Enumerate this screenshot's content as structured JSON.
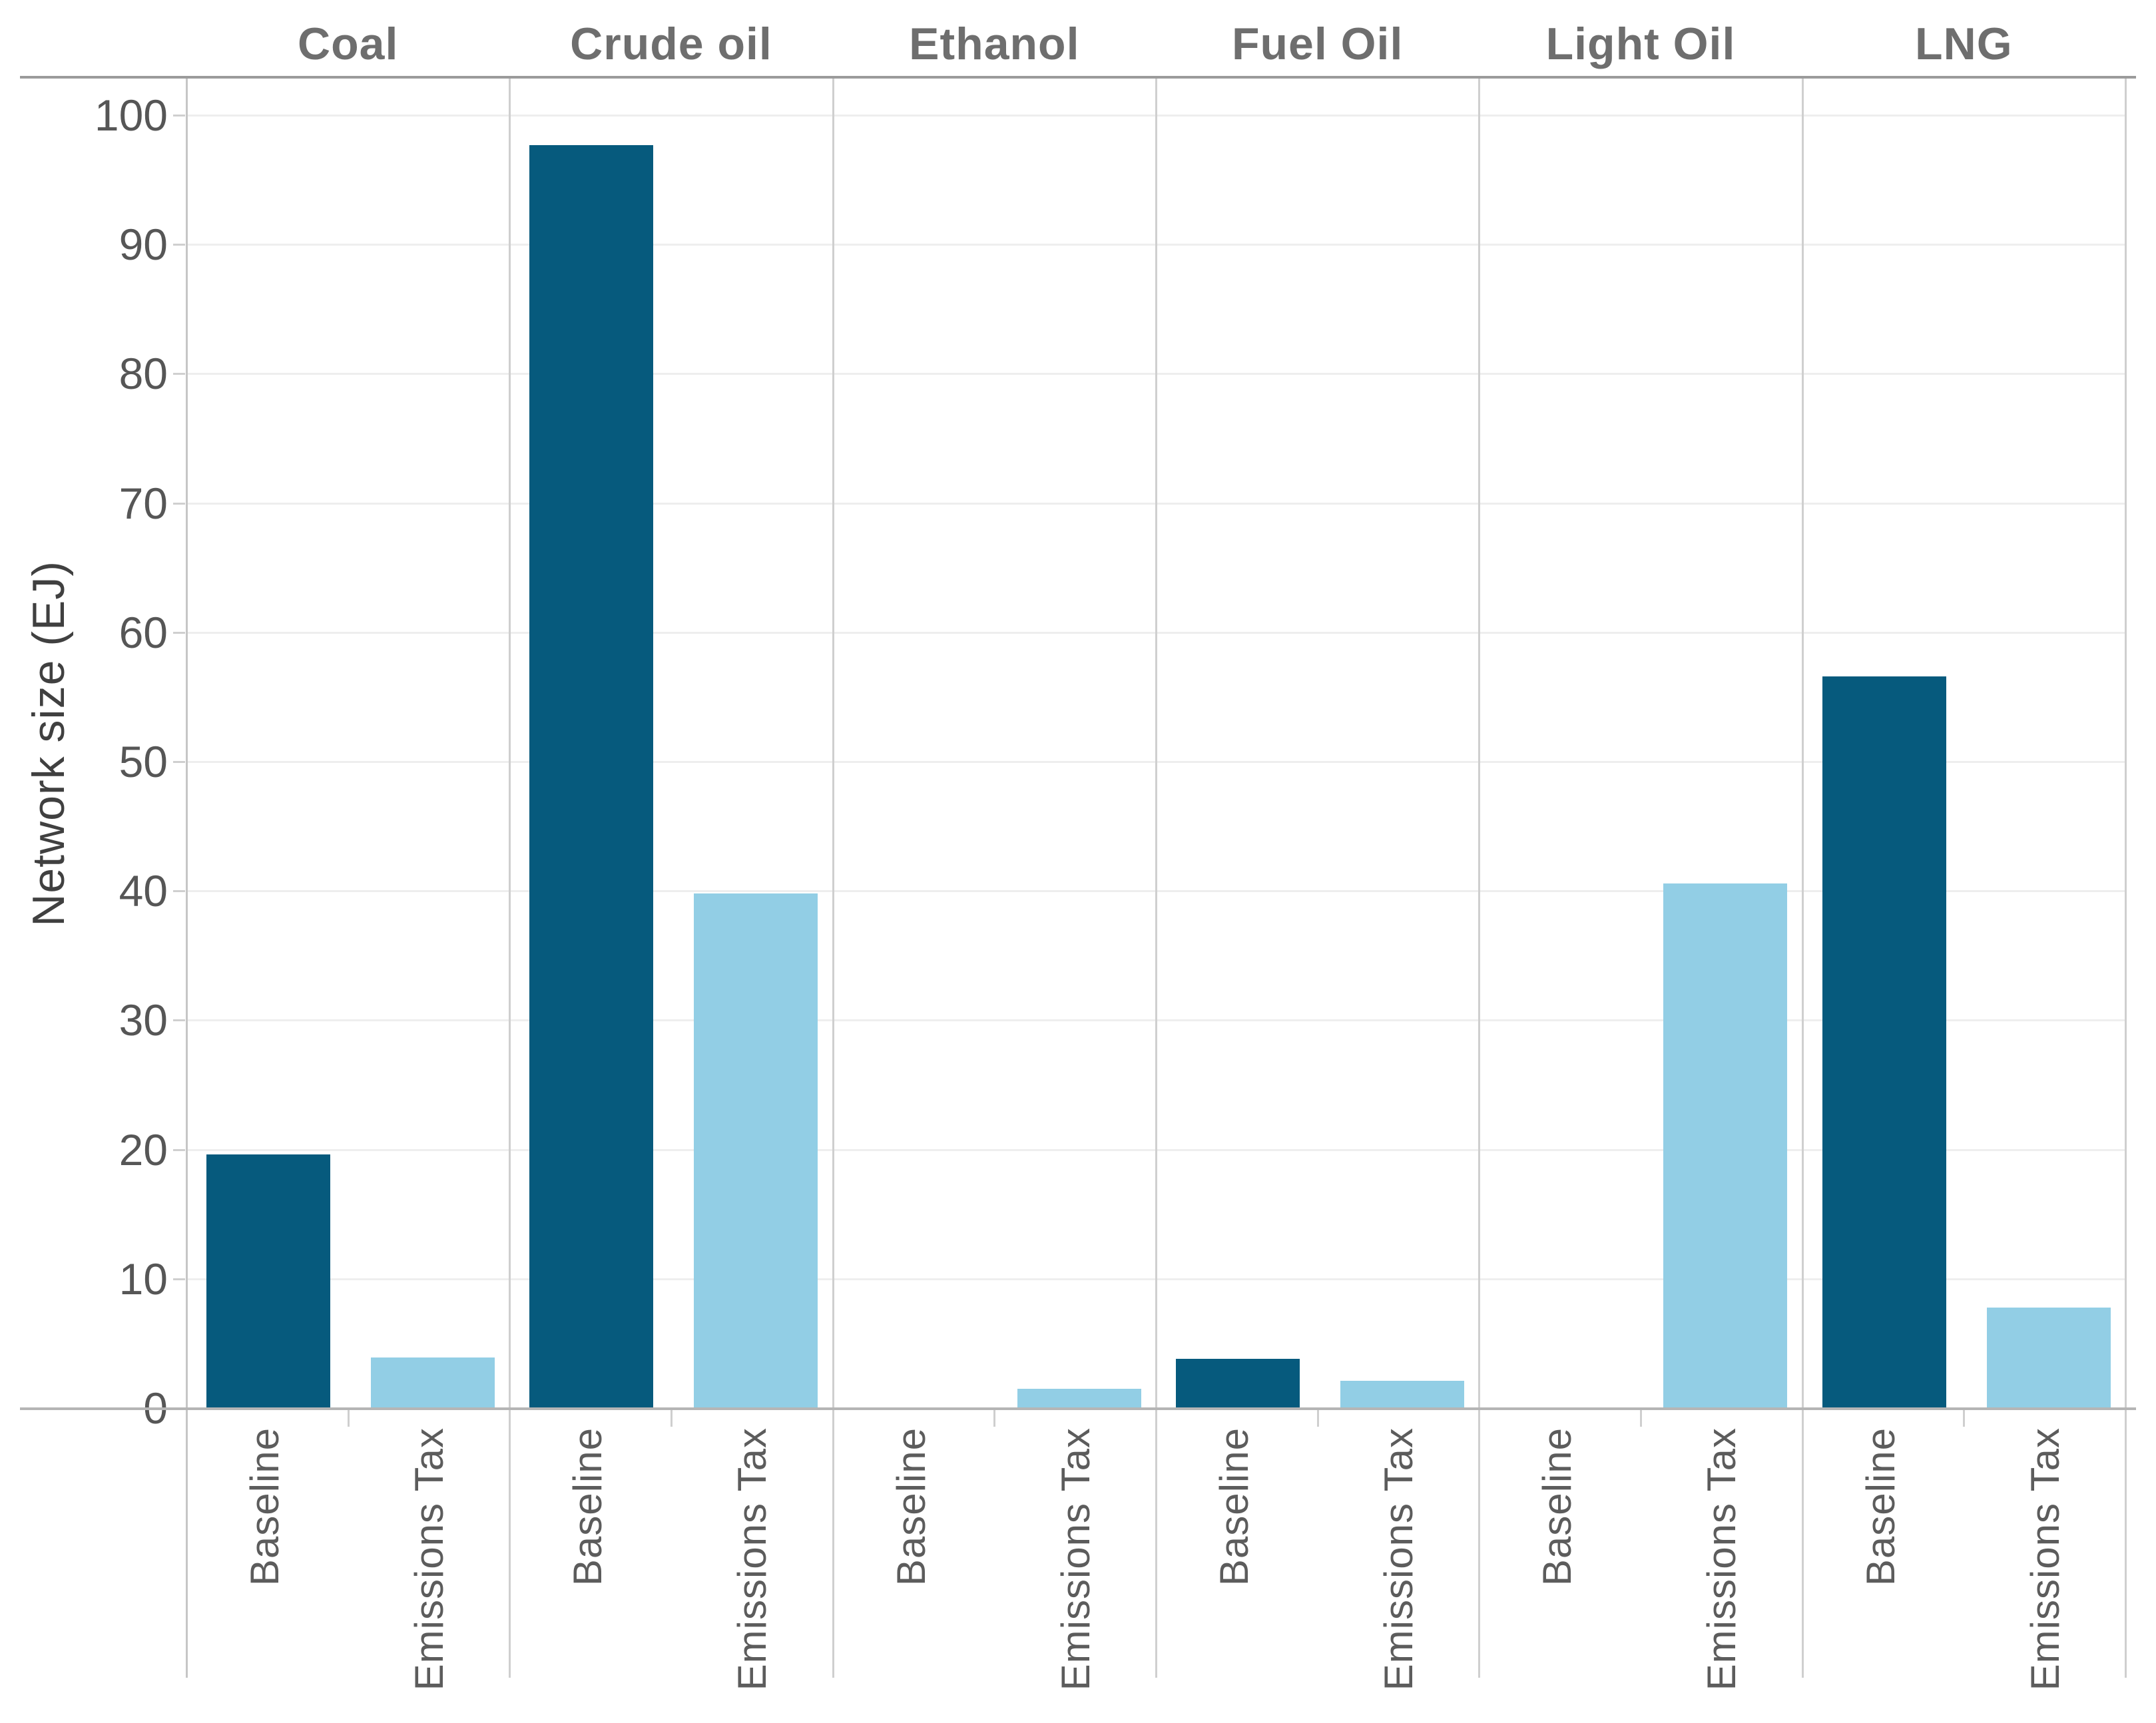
{
  "chart_data": {
    "type": "bar",
    "title": "",
    "ylabel": "Network size (EJ)",
    "xlabel": "",
    "ylim": [
      0,
      100
    ],
    "ytick_step": 10,
    "ytick_labels": [
      "0",
      "10",
      "20",
      "30",
      "40",
      "50",
      "60",
      "70",
      "80",
      "90",
      "100"
    ],
    "grid": true,
    "legend_position": "none",
    "facets": [
      "Coal",
      "Crude oil",
      "Ethanol",
      "Fuel Oil",
      "Light Oil",
      "LNG"
    ],
    "categories": [
      "Baseline",
      "Emissions Tax"
    ],
    "series": [
      {
        "name": "Baseline",
        "color": "#065a7d",
        "values": [
          19.6,
          97.7,
          0.0,
          3.8,
          0.0,
          56.6
        ]
      },
      {
        "name": "Emissions Tax",
        "color": "#92cee5",
        "values": [
          3.9,
          39.8,
          1.5,
          2.1,
          40.6,
          7.8
        ]
      }
    ]
  },
  "colors": {
    "background": "#ffffff",
    "baseline_bar": "#065a7d",
    "emissions_tax_bar": "#92cee5",
    "gridline": "#eeeeee",
    "panel_separator": "#cfcfcf",
    "frame_top_line": "#9b9b9b",
    "axis_bottom_line": "#b5b5b5",
    "tick": "#cfcfcf",
    "facet_header_text": "#6e6e6e",
    "tick_label_text": "#565656",
    "axis_title_text": "#404040"
  }
}
